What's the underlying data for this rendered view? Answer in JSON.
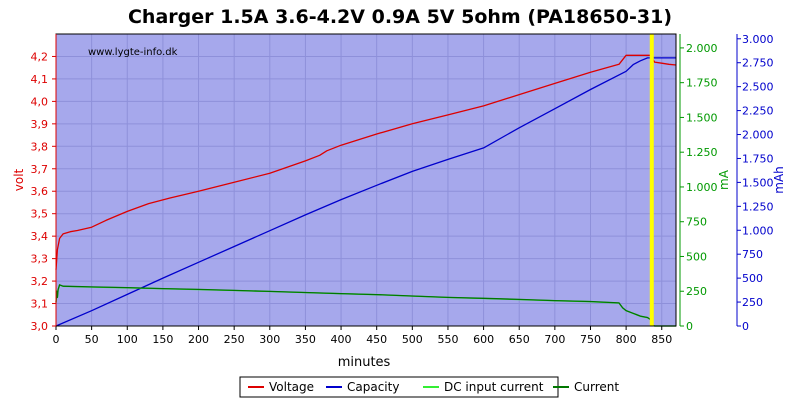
{
  "chart_data": {
    "type": "line",
    "title": "Charger 1.5A 3.6-4.2V 0.9A 5V 5ohm (PA18650-31)",
    "watermark": "www.lygte-info.dk",
    "xlabel": "minutes",
    "xlim": [
      0,
      870
    ],
    "x_ticks": [
      "0",
      "50",
      "100",
      "150",
      "200",
      "250",
      "300",
      "350",
      "400",
      "450",
      "500",
      "550",
      "600",
      "650",
      "700",
      "750",
      "800",
      "850"
    ],
    "axes": {
      "volt": {
        "label": "volt",
        "color": "#dd0000",
        "lim": [
          3.0,
          4.3
        ],
        "ticks": [
          "3,0",
          "3,1",
          "3,2",
          "3,3",
          "3,4",
          "3,5",
          "3,6",
          "3,7",
          "3,8",
          "3,9",
          "4,0",
          "4,1",
          "4,2"
        ]
      },
      "mA": {
        "label": "mA",
        "color": "#009900",
        "lim": [
          0,
          2100
        ],
        "ticks": [
          "0",
          "250",
          "500",
          "750",
          "1.000",
          "1.250",
          "1.500",
          "1.750",
          "2.000"
        ]
      },
      "mAh": {
        "label": "mAh",
        "color": "#0000cc",
        "lim": [
          0,
          3050
        ],
        "ticks": [
          "0",
          "250",
          "500",
          "750",
          "1.000",
          "1.250",
          "1.500",
          "1.750",
          "2.000",
          "2.250",
          "2.500",
          "2.750",
          "3.000"
        ]
      }
    },
    "marker": {
      "x": 836,
      "color": "#ffff00"
    },
    "legend_position": "bottom",
    "series": [
      {
        "name": "Voltage",
        "axis": "volt",
        "color": "#dd0000",
        "x": [
          0,
          2,
          5,
          10,
          20,
          30,
          50,
          70,
          100,
          130,
          160,
          200,
          250,
          300,
          350,
          370,
          380,
          400,
          450,
          500,
          550,
          600,
          650,
          700,
          750,
          790,
          800,
          810,
          830,
          835,
          837,
          840,
          850,
          860,
          870
        ],
        "y": [
          3.25,
          3.34,
          3.39,
          3.41,
          3.42,
          3.425,
          3.44,
          3.47,
          3.51,
          3.545,
          3.57,
          3.6,
          3.64,
          3.68,
          3.735,
          3.76,
          3.78,
          3.805,
          3.855,
          3.9,
          3.94,
          3.98,
          4.03,
          4.08,
          4.13,
          4.165,
          4.205,
          4.205,
          4.205,
          4.205,
          4.19,
          4.175,
          4.17,
          4.165,
          4.162
        ]
      },
      {
        "name": "Capacity",
        "axis": "mAh",
        "color": "#0000cc",
        "x": [
          0,
          50,
          100,
          150,
          200,
          250,
          300,
          350,
          400,
          450,
          500,
          550,
          600,
          650,
          700,
          750,
          800,
          810,
          820,
          830,
          840,
          870
        ],
        "y": [
          0,
          160,
          330,
          500,
          665,
          830,
          995,
          1160,
          1320,
          1470,
          1615,
          1740,
          1860,
          2070,
          2270,
          2470,
          2660,
          2730,
          2770,
          2800,
          2800,
          2800
        ]
      },
      {
        "name": "DC input current",
        "axis": "mA",
        "color": "#33ee33",
        "x": [
          0,
          1,
          2,
          3,
          5,
          10,
          50,
          100,
          150,
          200,
          250,
          300,
          350,
          400,
          450,
          500,
          550,
          600,
          650,
          700,
          750,
          790,
          795,
          800,
          810,
          820,
          830,
          833,
          836,
          837,
          840,
          850,
          870
        ],
        "y": [
          170,
          250,
          205,
          260,
          295,
          285,
          280,
          275,
          268,
          262,
          255,
          248,
          240,
          232,
          225,
          215,
          205,
          198,
          190,
          182,
          175,
          165,
          130,
          110,
          90,
          70,
          60,
          50,
          40,
          5,
          0,
          0,
          0
        ]
      },
      {
        "name": "Current",
        "axis": "mA",
        "color": "#007700",
        "x": [
          0,
          1,
          2,
          3,
          5,
          10,
          50,
          100,
          150,
          200,
          250,
          300,
          350,
          400,
          450,
          500,
          550,
          600,
          650,
          700,
          750,
          790,
          795,
          800,
          810,
          820,
          830,
          833,
          836,
          837,
          840,
          850,
          870
        ],
        "y": [
          170,
          250,
          205,
          262,
          296,
          286,
          281,
          276,
          269,
          263,
          256,
          249,
          241,
          233,
          226,
          216,
          206,
          199,
          191,
          183,
          176,
          166,
          131,
          111,
          91,
          71,
          61,
          51,
          41,
          6,
          0,
          0,
          0
        ]
      }
    ]
  }
}
